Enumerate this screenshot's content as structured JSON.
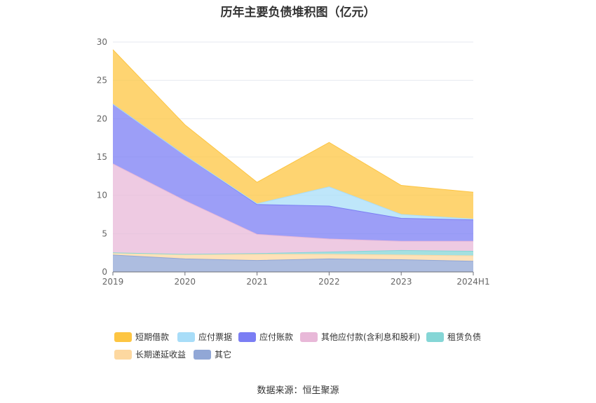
{
  "source_text": "数据来源：恒生聚源",
  "chart_data": {
    "type": "area",
    "stacked": true,
    "title": "历年主要负债堆积图（亿元）",
    "xlabel": "",
    "ylabel": "",
    "categories": [
      "2019",
      "2020",
      "2021",
      "2022",
      "2023",
      "2024H1"
    ],
    "ylim": [
      0,
      30
    ],
    "yticks": [
      0,
      5,
      10,
      15,
      20,
      25,
      30
    ],
    "grid": true,
    "legend_position": "bottom",
    "series": [
      {
        "name": "其它",
        "color": "#91a7d6",
        "values": [
          2.2,
          1.7,
          1.5,
          1.7,
          1.6,
          1.4
        ]
      },
      {
        "name": "长期递延收益",
        "color": "#fdd8a0",
        "values": [
          0.3,
          0.6,
          0.8,
          0.6,
          0.6,
          0.7
        ]
      },
      {
        "name": "租赁负债",
        "color": "#85d6d6",
        "values": [
          0.0,
          0.0,
          0.1,
          0.3,
          0.6,
          0.6
        ]
      },
      {
        "name": "其他应付款(含利息和股利)",
        "color": "#e8b8d8",
        "values": [
          11.6,
          7.0,
          2.5,
          1.7,
          1.2,
          1.3
        ]
      },
      {
        "name": "应付账款",
        "color": "#7b7ef4",
        "values": [
          7.8,
          5.9,
          3.9,
          4.3,
          3.0,
          2.8
        ]
      },
      {
        "name": "应付票据",
        "color": "#a8ddf8",
        "values": [
          0.0,
          0.0,
          0.1,
          2.5,
          0.5,
          0.1
        ]
      },
      {
        "name": "短期借款",
        "color": "#fdc542",
        "values": [
          7.1,
          4.0,
          2.8,
          5.8,
          3.8,
          3.5
        ]
      }
    ],
    "legend_order": [
      "短期借款",
      "应付票据",
      "应付账款",
      "其他应付款(含利息和股利)",
      "租赁负债",
      "长期递延收益",
      "其它"
    ]
  }
}
